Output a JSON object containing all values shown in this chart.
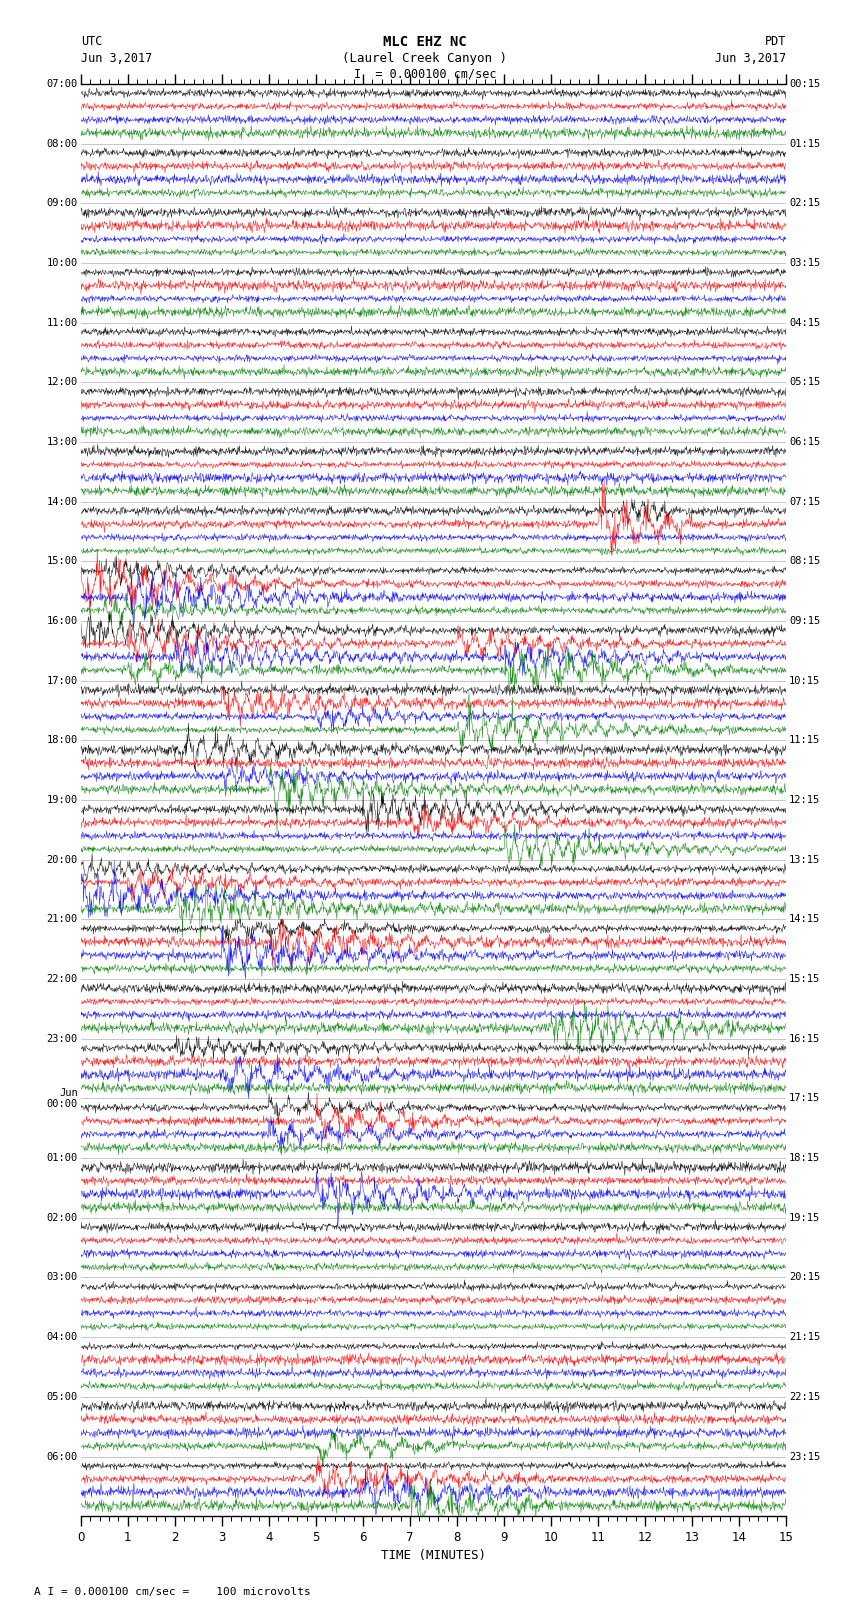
{
  "title_line1": "MLC EHZ NC",
  "title_line2": "(Laurel Creek Canyon )",
  "scale_label": "I  = 0.000100 cm/sec",
  "left_header_line1": "UTC",
  "left_header_line2": "Jun 3,2017",
  "right_header_line1": "PDT",
  "right_header_line2": "Jun 3,2017",
  "xlabel": "TIME (MINUTES)",
  "footer": "A I = 0.000100 cm/sec =    100 microvolts",
  "background_color": "#ffffff",
  "trace_colors": [
    "#000000",
    "#ff0000",
    "#0000ff",
    "#008000"
  ],
  "utc_labels": [
    "07:00",
    "08:00",
    "09:00",
    "10:00",
    "11:00",
    "12:00",
    "13:00",
    "14:00",
    "15:00",
    "16:00",
    "17:00",
    "18:00",
    "19:00",
    "20:00",
    "21:00",
    "22:00",
    "23:00",
    "Jun\n00:00",
    "01:00",
    "02:00",
    "03:00",
    "04:00",
    "05:00",
    "06:00"
  ],
  "pdt_labels": [
    "00:15",
    "01:15",
    "02:15",
    "03:15",
    "04:15",
    "05:15",
    "06:15",
    "07:15",
    "08:15",
    "09:15",
    "10:15",
    "11:15",
    "12:15",
    "13:15",
    "14:15",
    "15:15",
    "16:15",
    "17:15",
    "18:15",
    "19:15",
    "20:15",
    "21:15",
    "22:15",
    "23:15"
  ],
  "n_rows": 24,
  "traces_per_row": 4,
  "duration_minutes": 15,
  "noise_base": 0.4,
  "seed": 42
}
